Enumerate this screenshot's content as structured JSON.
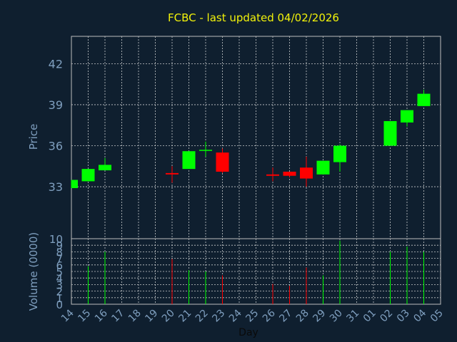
{
  "chart_data": {
    "type": "candlestick",
    "title": "FCBC - last updated 04/02/2026",
    "xlabel": "Day",
    "price_panel": {
      "ylabel": "Price",
      "ylim": [
        29.2,
        44.0
      ],
      "yticks": [
        "33",
        "36",
        "39",
        "42"
      ],
      "grid": true
    },
    "volume_panel": {
      "ylabel": "Volume (0000)",
      "ylim": [
        0,
        10
      ],
      "yticks": [
        "0",
        "1",
        "2",
        "3",
        "4",
        "5",
        "6",
        "7",
        "8",
        "9",
        "10"
      ],
      "grid": true
    },
    "x_tick_labels": [
      "14",
      "15",
      "16",
      "17",
      "18",
      "19",
      "20",
      "21",
      "22",
      "23",
      "24",
      "25",
      "26",
      "27",
      "28",
      "29",
      "30",
      "31",
      "01",
      "02",
      "03",
      "04",
      "05"
    ],
    "candles": [
      {
        "day": "14",
        "open": 32.9,
        "close": 33.5,
        "high": 33.5,
        "low": 32.9,
        "volume": 0
      },
      {
        "day": "15",
        "open": 33.4,
        "close": 34.3,
        "high": 34.3,
        "low": 33.4,
        "volume": 5.8
      },
      {
        "day": "16",
        "open": 34.2,
        "close": 34.6,
        "high": 35.1,
        "low": 34.2,
        "volume": 8.0
      },
      {
        "day": "20",
        "open": 34.0,
        "close": 33.9,
        "high": 34.5,
        "low": 33.3,
        "volume": 6.9
      },
      {
        "day": "21",
        "open": 34.3,
        "close": 35.6,
        "high": 35.6,
        "low": 34.3,
        "volume": 5.2
      },
      {
        "day": "22",
        "open": 35.7,
        "close": 35.7,
        "high": 36.3,
        "low": 35.2,
        "volume": 5.0
      },
      {
        "day": "23",
        "open": 35.5,
        "close": 34.1,
        "high": 35.8,
        "low": 34.0,
        "volume": 4.4
      },
      {
        "day": "26",
        "open": 33.9,
        "close": 33.8,
        "high": 34.4,
        "low": 33.4,
        "volume": 3.1
      },
      {
        "day": "27",
        "open": 34.1,
        "close": 33.8,
        "high": 34.1,
        "low": 33.7,
        "volume": 2.8
      },
      {
        "day": "28",
        "open": 34.4,
        "close": 33.6,
        "high": 35.2,
        "low": 33.0,
        "volume": 5.6
      },
      {
        "day": "29",
        "open": 33.9,
        "close": 34.9,
        "high": 34.9,
        "low": 33.9,
        "volume": 4.4
      },
      {
        "day": "30",
        "open": 34.8,
        "close": 36.0,
        "high": 36.1,
        "low": 34.1,
        "volume": 9.7
      },
      {
        "day": "02",
        "open": 36.0,
        "close": 37.8,
        "high": 37.8,
        "low": 36.0,
        "volume": 8.0
      },
      {
        "day": "03",
        "open": 37.7,
        "close": 38.6,
        "high": 38.6,
        "low": 37.4,
        "volume": 8.8
      },
      {
        "day": "04",
        "open": 38.9,
        "close": 39.8,
        "high": 40.1,
        "low": 38.9,
        "volume": 8.0
      }
    ],
    "colors": {
      "up": "#00ff00",
      "down": "#ff0000",
      "background": "#0f1f2f",
      "title": "#f2f20a",
      "axis_text": "#7f9fbf",
      "grid": "#e8e8e8"
    }
  }
}
